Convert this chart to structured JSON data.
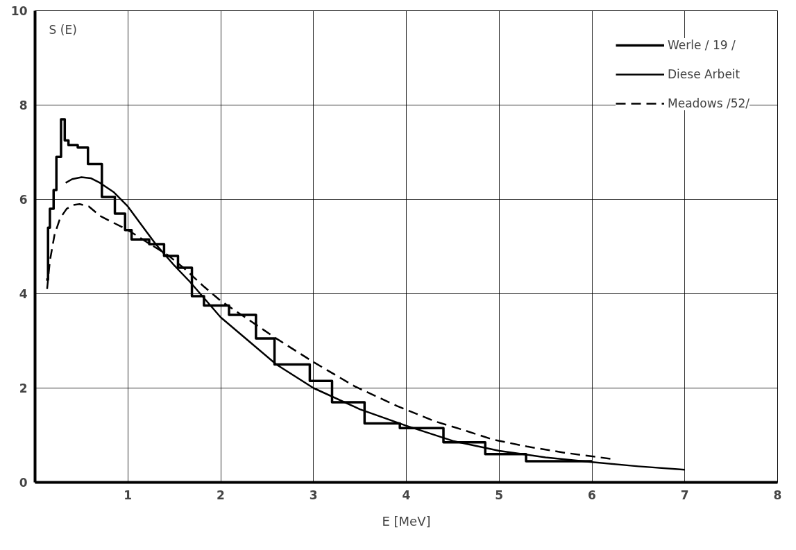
{
  "chart_data": {
    "type": "line",
    "xlabel": "E [MeV]",
    "ylabel": "S (E)",
    "xlim": [
      0,
      8
    ],
    "ylim": [
      0,
      10
    ],
    "xticks": [
      1,
      2,
      3,
      4,
      5,
      6,
      7,
      8
    ],
    "yticks": [
      0,
      2,
      4,
      6,
      8,
      10
    ],
    "grid": true,
    "legend": "top right",
    "marker": "none",
    "series": [
      {
        "name": "Werle / 19 /",
        "type": "step",
        "color": "#000000",
        "line_style": "solid",
        "x": [
          0.12,
          0.14,
          0.16,
          0.2,
          0.23,
          0.28,
          0.32,
          0.36,
          0.46,
          0.57,
          0.72,
          0.86,
          0.97,
          1.04,
          1.23,
          1.39,
          1.54,
          1.69,
          1.82,
          2.09,
          2.38,
          2.58,
          2.96,
          3.2,
          3.55,
          3.93,
          4.4,
          4.85,
          5.29,
          6.0
        ],
        "values": [
          4.3,
          5.4,
          5.8,
          6.2,
          6.9,
          7.7,
          7.25,
          7.15,
          7.1,
          6.75,
          6.05,
          5.7,
          5.35,
          5.15,
          5.05,
          4.8,
          4.55,
          3.95,
          3.75,
          3.55,
          3.05,
          2.5,
          2.15,
          1.7,
          1.25,
          1.15,
          0.85,
          0.6,
          0.45,
          0.45
        ]
      },
      {
        "name": "Diese Arbeit",
        "color": "#000000",
        "line_style": "solid",
        "x": [
          0.33,
          0.4,
          0.5,
          0.6,
          0.7,
          0.85,
          1.0,
          1.15,
          1.3,
          1.5,
          1.67,
          2.0,
          2.3,
          2.6,
          3.0,
          3.5,
          4.0,
          4.5,
          5.0,
          5.5,
          6.0,
          6.5,
          7.0
        ],
        "values": [
          6.35,
          6.43,
          6.47,
          6.45,
          6.35,
          6.15,
          5.85,
          5.45,
          5.05,
          4.6,
          4.25,
          3.5,
          3.0,
          2.5,
          2.0,
          1.55,
          1.2,
          0.88,
          0.67,
          0.53,
          0.43,
          0.34,
          0.27
        ]
      },
      {
        "name": "Meadows /52/",
        "color": "#000000",
        "line_style": "dashed",
        "x": [
          0.13,
          0.16,
          0.21,
          0.27,
          0.34,
          0.41,
          0.48,
          0.58,
          0.7,
          0.85,
          1.0,
          1.2,
          1.43,
          1.6,
          1.82,
          2.0,
          2.3,
          2.6,
          3.0,
          3.45,
          3.9,
          4.3,
          4.6,
          4.93,
          5.3,
          5.7,
          6.2
        ],
        "values": [
          4.1,
          4.7,
          5.25,
          5.6,
          5.8,
          5.88,
          5.9,
          5.85,
          5.65,
          5.5,
          5.35,
          5.1,
          4.82,
          4.55,
          4.15,
          3.85,
          3.45,
          3.05,
          2.55,
          2.03,
          1.62,
          1.3,
          1.12,
          0.91,
          0.76,
          0.63,
          0.5
        ]
      }
    ]
  }
}
